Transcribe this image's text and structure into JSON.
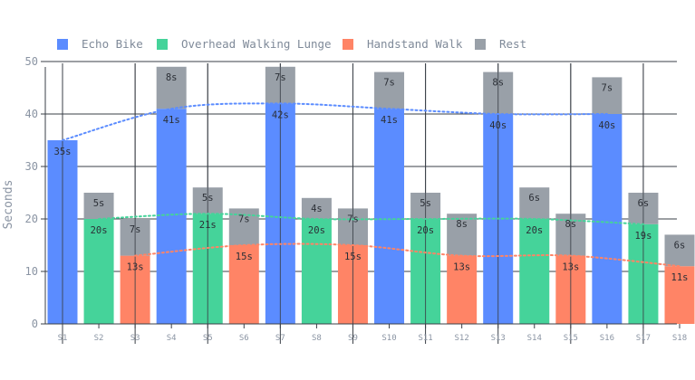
{
  "chart_data": {
    "type": "bar",
    "stacked": true,
    "ylabel": "Seconds",
    "xlabel": "",
    "ylim": [
      0,
      50
    ],
    "yticks": [
      0,
      10,
      20,
      30,
      40,
      50
    ],
    "grid": true,
    "legend_position": "top-left",
    "categories": [
      "S1",
      "S2",
      "S3",
      "S4",
      "S5",
      "S6",
      "S7",
      "S8",
      "S9",
      "S10",
      "S11",
      "S12",
      "S13",
      "S14",
      "S15",
      "S16",
      "S17",
      "S18"
    ],
    "series": [
      {
        "name": "Echo Bike",
        "color": "#5b8cff"
      },
      {
        "name": "Overhead Walking Lunge",
        "color": "#45d39a"
      },
      {
        "name": "Handstand Walk",
        "color": "#ff8466"
      },
      {
        "name": "Rest",
        "color": "#99a0a8"
      }
    ],
    "bars": [
      {
        "category": "S1",
        "movement": "Echo Bike",
        "work": 35,
        "rest": 0
      },
      {
        "category": "S2",
        "movement": "Overhead Walking Lunge",
        "work": 20,
        "rest": 5
      },
      {
        "category": "S3",
        "movement": "Handstand Walk",
        "work": 13,
        "rest": 7
      },
      {
        "category": "S4",
        "movement": "Echo Bike",
        "work": 41,
        "rest": 8
      },
      {
        "category": "S5",
        "movement": "Overhead Walking Lunge",
        "work": 21,
        "rest": 5
      },
      {
        "category": "S6",
        "movement": "Handstand Walk",
        "work": 15,
        "rest": 7
      },
      {
        "category": "S7",
        "movement": "Echo Bike",
        "work": 42,
        "rest": 7
      },
      {
        "category": "S8",
        "movement": "Overhead Walking Lunge",
        "work": 20,
        "rest": 4
      },
      {
        "category": "S9",
        "movement": "Handstand Walk",
        "work": 15,
        "rest": 7
      },
      {
        "category": "S10",
        "movement": "Echo Bike",
        "work": 41,
        "rest": 7
      },
      {
        "category": "S11",
        "movement": "Overhead Walking Lunge",
        "work": 20,
        "rest": 5
      },
      {
        "category": "S12",
        "movement": "Handstand Walk",
        "work": 13,
        "rest": 8
      },
      {
        "category": "S13",
        "movement": "Echo Bike",
        "work": 40,
        "rest": 8
      },
      {
        "category": "S14",
        "movement": "Overhead Walking Lunge",
        "work": 20,
        "rest": 6
      },
      {
        "category": "S15",
        "movement": "Handstand Walk",
        "work": 13,
        "rest": 8
      },
      {
        "category": "S16",
        "movement": "Echo Bike",
        "work": 40,
        "rest": 7
      },
      {
        "category": "S17",
        "movement": "Overhead Walking Lunge",
        "work": 19,
        "rest": 6
      },
      {
        "category": "S18",
        "movement": "Handstand Walk",
        "work": 11,
        "rest": 6
      }
    ],
    "trend_lines": [
      {
        "series": "Echo Bike",
        "style": "dotted"
      },
      {
        "series": "Overhead Walking Lunge",
        "style": "dotted"
      },
      {
        "series": "Handstand Walk",
        "style": "dotted"
      }
    ],
    "label_suffix": "s"
  }
}
